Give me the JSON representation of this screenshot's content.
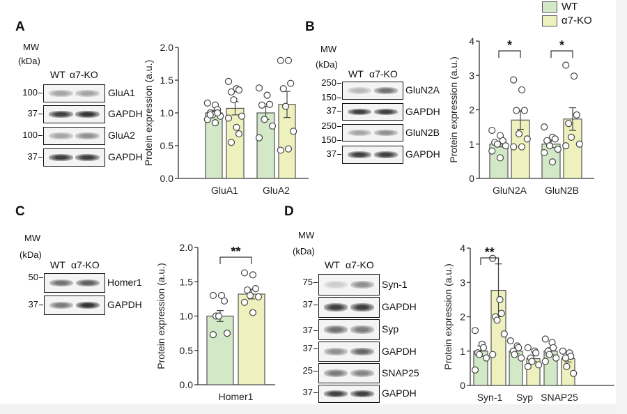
{
  "legend": {
    "items": [
      {
        "label": "WT",
        "color": "#d3e8c6"
      },
      {
        "label": "α7-KO",
        "color": "#eef1bd"
      }
    ]
  },
  "colors": {
    "wt": "#d3e8c6",
    "ko": "#eef1bd",
    "stroke": "#555555"
  },
  "panels": [
    {
      "letter": "A",
      "blot": {
        "mw": "MW",
        "kda": "(kDa)",
        "lanes": [
          "WT",
          "α7-KO"
        ],
        "rows": [
          {
            "mw": [
              "100"
            ],
            "label": "GluA1",
            "bands": [
              0.35,
              0.35
            ]
          },
          {
            "mw": [
              "37"
            ],
            "label": "GAPDH",
            "bands": [
              0.85,
              0.9
            ]
          },
          {
            "mw": [
              "100"
            ],
            "label": "GluA2",
            "bands": [
              0.35,
              0.45
            ]
          },
          {
            "mw": [
              "37"
            ],
            "label": "GAPDH",
            "bands": [
              0.85,
              0.85
            ]
          }
        ]
      }
    },
    {
      "letter": "B",
      "blot": {
        "mw": "MW",
        "kda": "(kDa)",
        "lanes": [
          "WT",
          "α7-KO"
        ],
        "rows": [
          {
            "mw": [
              "250",
              "150"
            ],
            "label": "GluN2A",
            "bands": [
              0.25,
              0.6
            ]
          },
          {
            "mw": [
              "37"
            ],
            "label": "GAPDH",
            "bands": [
              0.85,
              0.85
            ]
          },
          {
            "mw": [
              "250",
              "150"
            ],
            "label": "GluN2B",
            "bands": [
              0.35,
              0.45
            ]
          },
          {
            "mw": [
              "37"
            ],
            "label": "GAPDH",
            "bands": [
              0.85,
              0.85
            ]
          }
        ]
      }
    },
    {
      "letter": "C",
      "blot": {
        "mw": "MW",
        "kda": "(kDa)",
        "lanes": [
          "WT",
          "α7-KO"
        ],
        "rows": [
          {
            "mw": [
              "50"
            ],
            "label": "Homer1",
            "bands": [
              0.6,
              0.7
            ]
          },
          {
            "mw": [
              "37"
            ],
            "label": "GAPDH",
            "bands": [
              0.55,
              0.9
            ]
          }
        ]
      }
    },
    {
      "letter": "D",
      "blot": {
        "mw": "MW",
        "kda": "(kDa)",
        "lanes": [
          "WT",
          "α7-KO"
        ],
        "rows": [
          {
            "mw": [
              "75"
            ],
            "label": "Syn-1",
            "bands": [
              0.15,
              0.45
            ]
          },
          {
            "mw": [
              "37"
            ],
            "label": "GAPDH",
            "bands": [
              0.85,
              0.85
            ]
          },
          {
            "mw": [
              "37"
            ],
            "label": "Syp",
            "bands": [
              0.6,
              0.55
            ]
          },
          {
            "mw": [
              "37"
            ],
            "label": "GAPDH",
            "bands": [
              0.45,
              0.65
            ]
          },
          {
            "mw": [
              "25"
            ],
            "label": "SNAP25",
            "bands": [
              0.55,
              0.5
            ]
          },
          {
            "mw": [
              "37"
            ],
            "label": "GAPDH",
            "bands": [
              0.85,
              0.85
            ]
          }
        ]
      }
    }
  ],
  "chart_data": [
    {
      "type": "bar",
      "panel": "A",
      "ylabel": "Protein expression (a.u.)",
      "ylim": [
        0,
        2.0
      ],
      "yticks": [
        "0.0",
        "0.5",
        "1.0",
        "1.5",
        "2.0"
      ],
      "categories": [
        "GluA1",
        "GluA2"
      ],
      "series": [
        {
          "name": "WT",
          "values": [
            1.0,
            1.0
          ],
          "sem": [
            0.04,
            0.1
          ],
          "points": [
            [
              1.15,
              1.12,
              1.05,
              1.0,
              0.97,
              0.95,
              0.9,
              0.85,
              1.0,
              0.97
            ],
            [
              1.38,
              1.27,
              1.13,
              1.12,
              0.9,
              0.8,
              0.62
            ]
          ]
        },
        {
          "name": "α7-KO",
          "values": [
            1.07,
            1.13
          ],
          "sem": [
            0.1,
            0.2
          ],
          "points": [
            [
              1.48,
              1.37,
              1.35,
              1.32,
              1.2,
              0.95,
              0.92,
              0.78,
              0.68,
              0.55
            ],
            [
              1.8,
              1.8,
              1.45,
              1.37,
              1.1,
              0.72,
              0.43,
              0.45
            ]
          ]
        }
      ],
      "significance": []
    },
    {
      "type": "bar",
      "panel": "B",
      "ylabel": "Protein expression (a.u.)",
      "ylim": [
        0,
        4
      ],
      "yticks": [
        "0",
        "1",
        "2",
        "3",
        "4"
      ],
      "categories": [
        "GluN2A",
        "GluN2B"
      ],
      "series": [
        {
          "name": "WT",
          "values": [
            1.0,
            1.0
          ],
          "sem": [
            0.08,
            0.1
          ],
          "points": [
            [
              1.4,
              1.25,
              1.1,
              1.05,
              1.0,
              0.95,
              0.8,
              0.6
            ],
            [
              1.5,
              1.2,
              1.15,
              1.1,
              0.95,
              0.85,
              0.75,
              0.48
            ]
          ]
        },
        {
          "name": "α7-KO",
          "values": [
            1.7,
            1.73
          ],
          "sem": [
            0.27,
            0.33
          ],
          "points": [
            [
              2.87,
              2.58,
              1.98,
              1.98,
              1.3,
              1.15,
              0.92,
              0.92
            ],
            [
              3.3,
              2.98,
              1.85,
              1.6,
              1.2,
              1.0,
              0.95
            ]
          ]
        }
      ],
      "significance": [
        {
          "category": 0,
          "label": "*"
        },
        {
          "category": 1,
          "label": "*"
        }
      ]
    },
    {
      "type": "bar",
      "panel": "C",
      "ylabel": "Protein expression (a.u.)",
      "ylim": [
        0,
        2.0
      ],
      "yticks": [
        "0.0",
        "0.5",
        "1.0",
        "1.5",
        "2.0"
      ],
      "categories": [
        "Homer1"
      ],
      "series": [
        {
          "name": "WT",
          "values": [
            1.0
          ],
          "sem": [
            0.08
          ],
          "points": [
            [
              1.3,
              1.3,
              1.22,
              1.0,
              1.0,
              0.75,
              0.73
            ]
          ]
        },
        {
          "name": "α7-KO",
          "values": [
            1.32
          ],
          "sem": [
            0.07
          ],
          "points": [
            [
              1.63,
              1.6,
              1.4,
              1.38,
              1.3,
              1.28,
              1.2,
              1.05
            ]
          ]
        }
      ],
      "significance": [
        {
          "category": 0,
          "label": "**"
        }
      ]
    },
    {
      "type": "bar",
      "panel": "D",
      "ylabel": "Protein expression (a.u.)",
      "ylim": [
        0,
        4
      ],
      "yticks": [
        "0",
        "1",
        "2",
        "3",
        "4"
      ],
      "categories": [
        "Syn-1",
        "Syp",
        "SNAP25"
      ],
      "series": [
        {
          "name": "WT",
          "values": [
            1.0,
            1.0,
            1.0
          ],
          "sem": [
            0.15,
            0.08,
            0.1
          ],
          "points": [
            [
              1.6,
              1.2,
              1.1,
              0.95,
              0.9,
              0.8,
              0.45
            ],
            [
              1.3,
              1.15,
              1.1,
              1.0,
              0.9,
              0.8
            ],
            [
              1.35,
              1.25,
              1.1,
              1.0,
              0.9,
              0.8,
              0.7
            ]
          ]
        },
        {
          "name": "α7-KO",
          "values": [
            2.77,
            0.78,
            0.78
          ],
          "sem": [
            0.77,
            0.08,
            0.1
          ],
          "points": [
            [
              3.7,
              2.5,
              2.1,
              2.0,
              1.9,
              1.5,
              0.9
            ],
            [
              1.1,
              1.0,
              0.95,
              0.8,
              0.7,
              0.6,
              0.55
            ],
            [
              1.0,
              0.95,
              0.85,
              0.8,
              0.55,
              0.35
            ]
          ]
        }
      ],
      "significance": [
        {
          "category": 0,
          "label": "**"
        }
      ]
    }
  ]
}
